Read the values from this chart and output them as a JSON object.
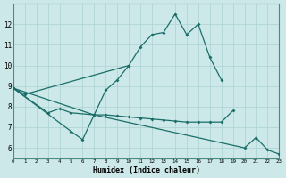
{
  "xlabel": "Humidex (Indice chaleur)",
  "x": [
    0,
    1,
    2,
    3,
    4,
    5,
    6,
    7,
    8,
    9,
    10,
    11,
    12,
    13,
    14,
    15,
    16,
    17,
    18,
    19,
    20,
    21,
    22,
    23
  ],
  "line_steep": [
    8.9,
    null,
    null,
    null,
    null,
    6.8,
    6.4,
    7.6,
    8.8,
    9.3,
    10.0,
    10.9,
    11.5,
    11.6,
    12.5,
    11.5,
    12.0,
    10.4,
    9.3,
    null,
    null,
    null,
    null,
    null
  ],
  "line_gradual": [
    8.9,
    8.6,
    null,
    null,
    null,
    null,
    null,
    null,
    null,
    null,
    10.0,
    null,
    null,
    null,
    null,
    null,
    null,
    null,
    null,
    null,
    null,
    null,
    null,
    null
  ],
  "line_flat1": [
    8.9,
    null,
    null,
    7.7,
    7.9,
    7.7,
    null,
    7.6,
    7.6,
    7.55,
    7.5,
    7.45,
    7.4,
    7.35,
    7.3,
    7.25,
    7.25,
    7.25,
    7.25,
    7.8,
    null,
    null,
    null,
    null
  ],
  "line_flat2": [
    8.9,
    null,
    null,
    null,
    null,
    null,
    null,
    7.6,
    null,
    null,
    null,
    null,
    null,
    null,
    null,
    null,
    null,
    null,
    null,
    null,
    6.0,
    6.5,
    5.9,
    5.7
  ],
  "xlim": [
    0,
    23
  ],
  "ylim": [
    5.5,
    13.0
  ],
  "yticks": [
    6,
    7,
    8,
    9,
    10,
    11,
    12
  ],
  "xticks": [
    0,
    1,
    2,
    3,
    4,
    5,
    6,
    7,
    8,
    9,
    10,
    11,
    12,
    13,
    14,
    15,
    16,
    17,
    18,
    19,
    20,
    21,
    22,
    23
  ],
  "bg_color": "#cce8e8",
  "line_color": "#1a6e6a",
  "grid_color": "#b0d4d4",
  "spine_color": "#4a8c80"
}
